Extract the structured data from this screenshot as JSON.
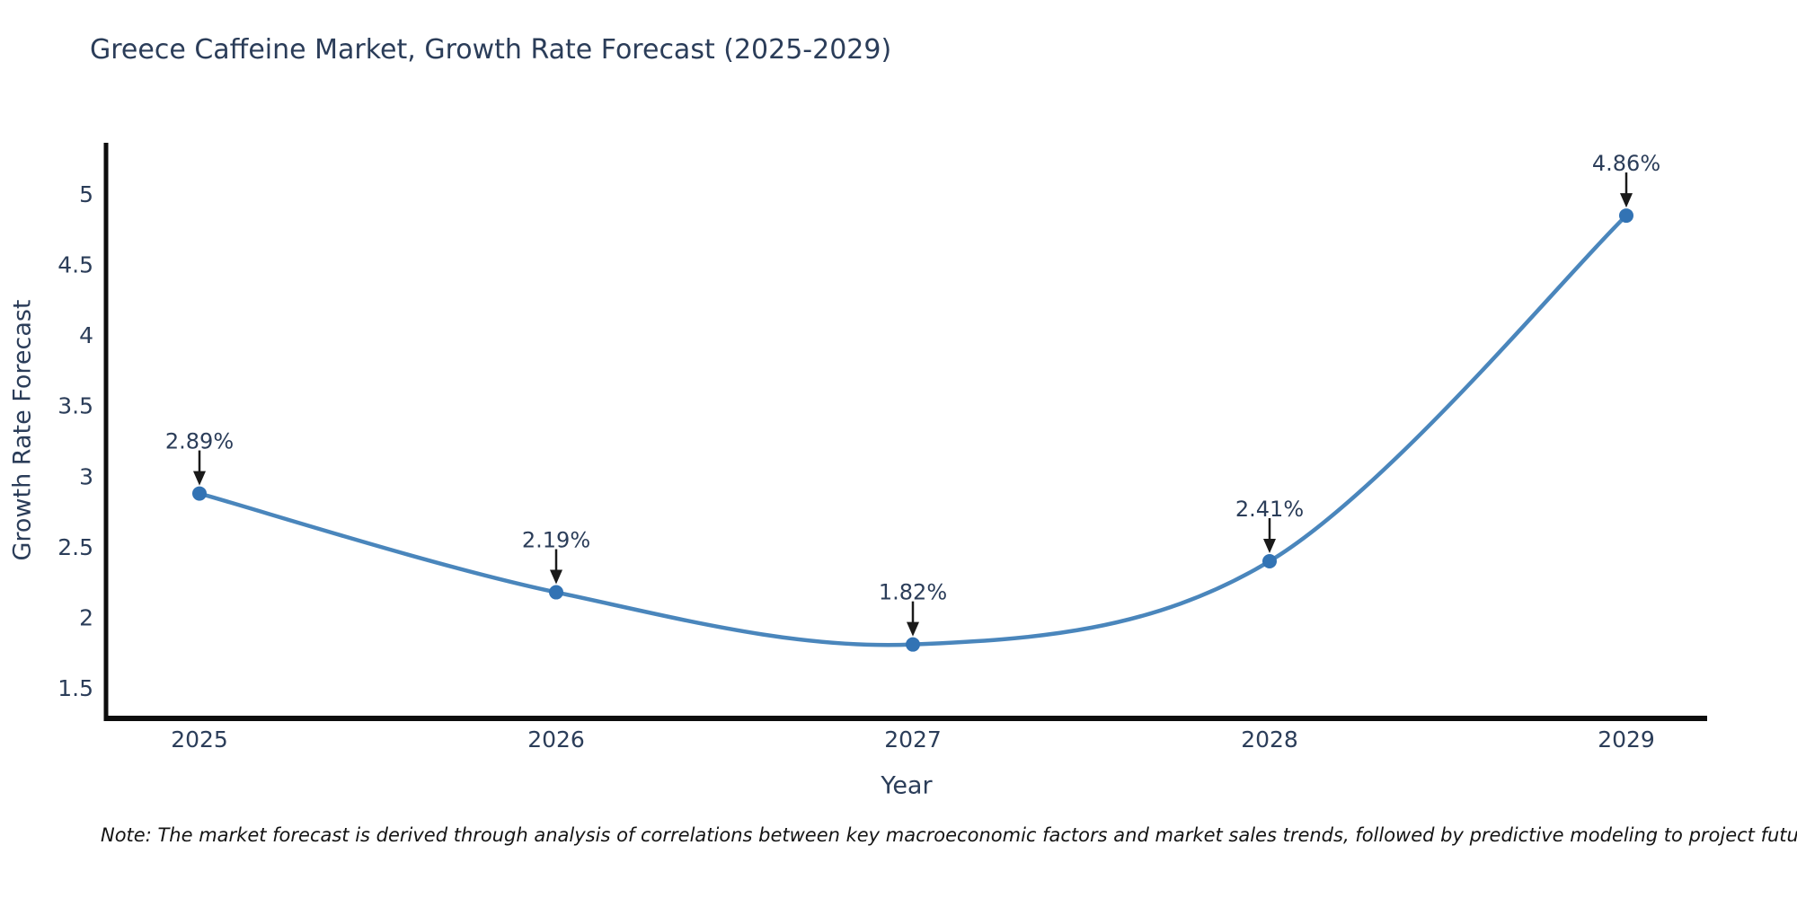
{
  "chart_data": {
    "type": "line",
    "title": "Greece Caffeine Market, Growth Rate Forecast (2025-2029)",
    "xlabel": "Year",
    "ylabel": "Growth Rate Forecast",
    "categories": [
      "2025",
      "2026",
      "2027",
      "2028",
      "2029"
    ],
    "values": [
      2.89,
      2.19,
      1.82,
      2.41,
      4.86
    ],
    "point_labels": [
      "2.89%",
      "2.19%",
      "1.82%",
      "2.41%",
      "4.86%"
    ],
    "yticks": [
      1.5,
      2,
      2.5,
      3,
      3.5,
      4,
      4.5,
      5
    ],
    "ylim": [
      1.296,
      5.376
    ],
    "grid": false,
    "legend": "none",
    "line_shape": "spline",
    "colors": {
      "line": "#4a86bc",
      "marker": "#3273b4",
      "axis": "#0d0d0d",
      "text": "#2b3d59",
      "annotation_arrow": "#1a1a1a"
    }
  },
  "note": {
    "text": "Note: The market forecast is derived through analysis of correlations between key macroeconomic factors and market sales trends, followed by predictive modeling to project future sales"
  }
}
